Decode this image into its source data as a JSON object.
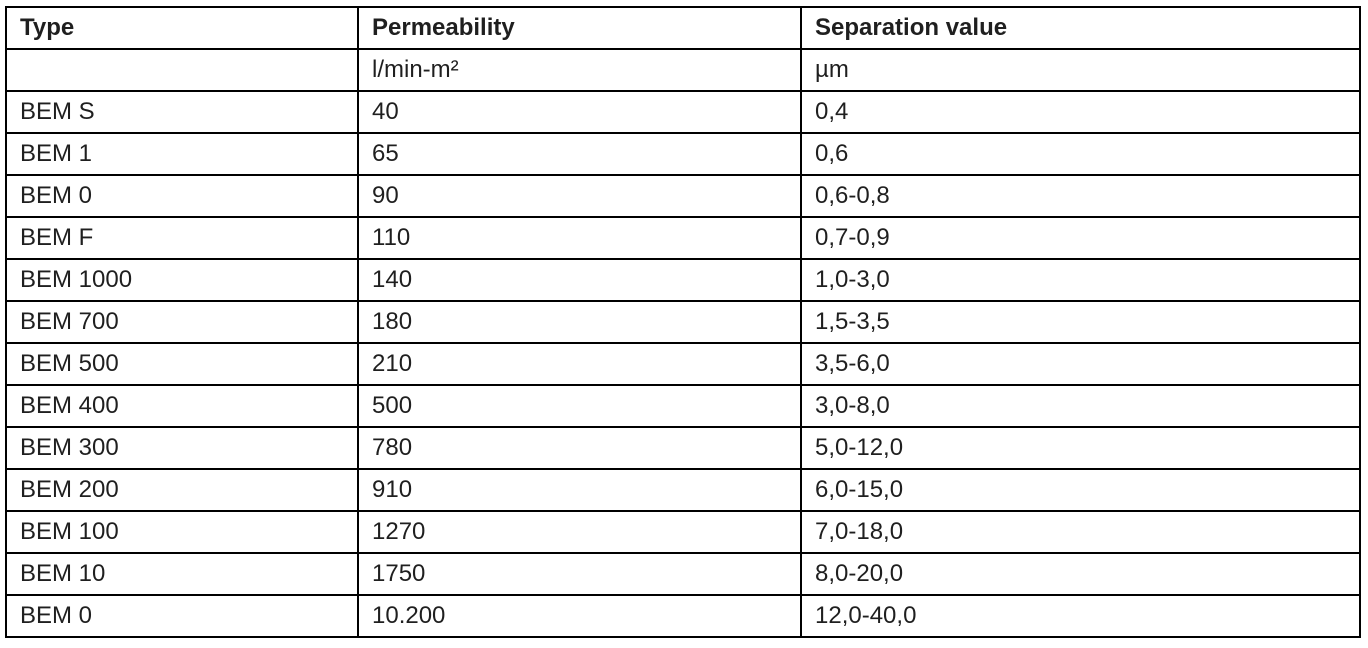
{
  "table": {
    "headers": [
      "Type",
      "Permeability",
      "Separation value"
    ],
    "units": [
      "",
      "l/min-m²",
      "µm"
    ],
    "rows": [
      [
        "BEM S",
        "40",
        "0,4"
      ],
      [
        "BEM 1",
        "65",
        "0,6"
      ],
      [
        "BEM 0",
        "90",
        "0,6-0,8"
      ],
      [
        "BEM F",
        "110",
        "0,7-0,9"
      ],
      [
        "BEM 1000",
        "140",
        "1,0-3,0"
      ],
      [
        "BEM 700",
        "180",
        "1,5-3,5"
      ],
      [
        "BEM 500",
        "210",
        "3,5-6,0"
      ],
      [
        "BEM 400",
        "500",
        "3,0-8,0"
      ],
      [
        "BEM 300",
        "780",
        "5,0-12,0"
      ],
      [
        "BEM 200",
        "910",
        "6,0-15,0"
      ],
      [
        "BEM 100",
        "1270",
        "7,0-18,0"
      ],
      [
        "BEM 10",
        "1750",
        "8,0-20,0"
      ],
      [
        "BEM 0",
        "10.200",
        "12,0-40,0"
      ]
    ]
  },
  "colors": {
    "border": "#000000",
    "text": "#1f1f1f",
    "background": "#ffffff"
  }
}
